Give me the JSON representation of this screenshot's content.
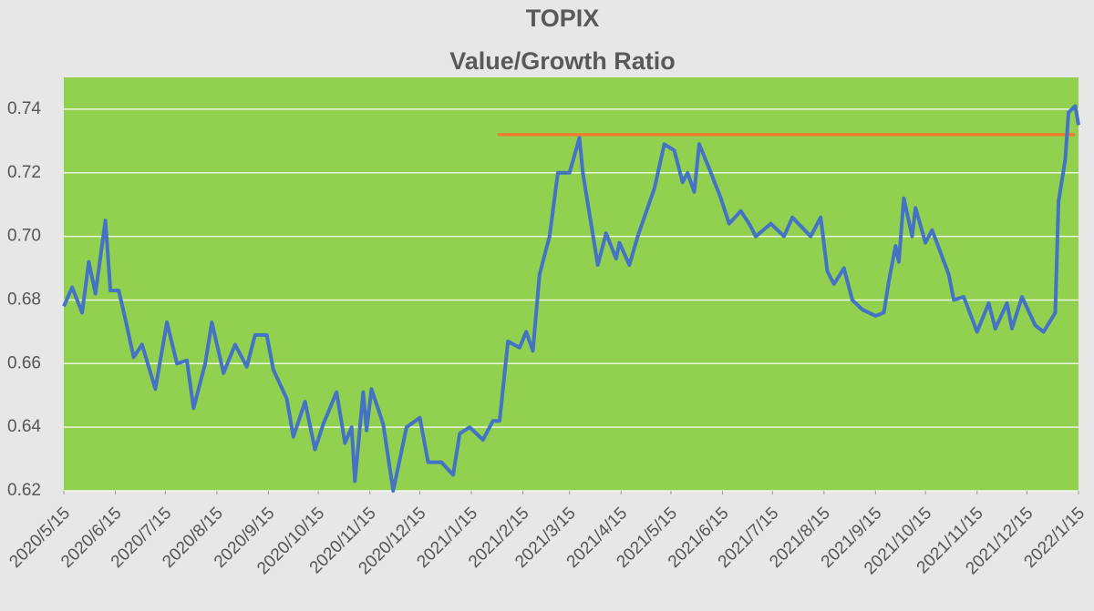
{
  "chart_data": {
    "type": "line",
    "title": "TOPIX",
    "subtitle": "Value/Growth Ratio",
    "color": "#4472c4",
    "background": "#92d050",
    "grid": true,
    "ylim": [
      0.62,
      0.75
    ],
    "yticks": [
      0.62,
      0.64,
      0.66,
      0.68,
      {
        "value": 0.7,
        "label": "0.70"
      },
      0.72,
      0.74
    ],
    "xlim": [
      "2020/5/15",
      "2022/1/15"
    ],
    "xticks": [
      "2020/5/15",
      "2020/6/15",
      "2020/7/15",
      "2020/8/15",
      "2020/9/15",
      "2020/10/15",
      "2020/11/15",
      "2020/12/15",
      "2021/1/15",
      "2021/2/15",
      "2021/3/15",
      "2021/4/15",
      "2021/5/15",
      "2021/6/15",
      "2021/7/15",
      "2021/8/15",
      "2021/9/15",
      "2021/10/15",
      "2021/11/15",
      "2021/12/15",
      "2022/1/15"
    ],
    "x": [
      "2020/5/15",
      "2020/5/20",
      "2020/5/26",
      "2020/5/30",
      "2020/6/3",
      "2020/6/9",
      "2020/6/12",
      "2020/6/17",
      "2020/6/21",
      "2020/6/26",
      "2020/7/1",
      "2020/7/9",
      "2020/7/16",
      "2020/7/22",
      "2020/7/28",
      "2020/8/1",
      "2020/8/8",
      "2020/8/12",
      "2020/8/19",
      "2020/8/26",
      "2020/9/2",
      "2020/9/7",
      "2020/9/14",
      "2020/9/18",
      "2020/9/26",
      "2020/9/30",
      "2020/10/7",
      "2020/10/13",
      "2020/10/18",
      "2020/10/26",
      "2020/10/31",
      "2020/11/4",
      "2020/11/6",
      "2020/11/11",
      "2020/11/13",
      "2020/11/16",
      "2020/11/23",
      "2020/11/29",
      "2020/12/7",
      "2020/12/15",
      "2020/12/20",
      "2020/12/28",
      "2021/1/4",
      "2021/1/8",
      "2021/1/14",
      "2021/1/22",
      "2021/1/28",
      "2021/2/1",
      "2021/2/6",
      "2021/2/13",
      "2021/2/17",
      "2021/2/21",
      "2021/2/25",
      "2021/3/3",
      "2021/3/8",
      "2021/3/15",
      "2021/3/21",
      "2021/3/23",
      "2021/4/1",
      "2021/4/6",
      "2021/4/12",
      "2021/4/14",
      "2021/4/20",
      "2021/4/25",
      "2021/5/5",
      "2021/5/11",
      "2021/5/17",
      "2021/5/22",
      "2021/5/25",
      "2021/5/29",
      "2021/6/1",
      "2021/6/8",
      "2021/6/14",
      "2021/6/19",
      "2021/6/26",
      "2021/7/1",
      "2021/7/5",
      "2021/7/14",
      "2021/7/22",
      "2021/7/27",
      "2021/8/7",
      "2021/8/13",
      "2021/8/17",
      "2021/8/21",
      "2021/8/27",
      "2021/9/1",
      "2021/9/7",
      "2021/9/15",
      "2021/9/20",
      "2021/9/23",
      "2021/9/27",
      "2021/9/29",
      "2021/10/2",
      "2021/10/7",
      "2021/10/9",
      "2021/10/15",
      "2021/10/19",
      "2021/10/24",
      "2021/10/29",
      "2021/11/1",
      "2021/11/7",
      "2021/11/15",
      "2021/11/22",
      "2021/11/26",
      "2021/12/3",
      "2021/12/6",
      "2021/12/12",
      "2021/12/20",
      "2021/12/25",
      "2022/1/1",
      "2022/1/3",
      "2022/1/7",
      "2022/1/9",
      "2022/1/13",
      "2022/1/15"
    ],
    "values": [
      0.678,
      0.684,
      0.676,
      0.692,
      0.682,
      0.705,
      0.683,
      0.683,
      0.674,
      0.662,
      0.666,
      0.652,
      0.673,
      0.66,
      0.661,
      0.646,
      0.66,
      0.673,
      0.657,
      0.666,
      0.659,
      0.669,
      0.669,
      0.658,
      0.649,
      0.637,
      0.648,
      0.633,
      0.641,
      0.651,
      0.635,
      0.64,
      0.623,
      0.651,
      0.639,
      0.652,
      0.641,
      0.62,
      0.64,
      0.643,
      0.629,
      0.629,
      0.625,
      0.638,
      0.64,
      0.636,
      0.642,
      0.642,
      0.667,
      0.665,
      0.67,
      0.664,
      0.688,
      0.7,
      0.72,
      0.72,
      0.731,
      0.72,
      0.691,
      0.701,
      0.693,
      0.698,
      0.691,
      0.7,
      0.715,
      0.729,
      0.727,
      0.717,
      0.72,
      0.714,
      0.729,
      0.72,
      0.712,
      0.704,
      0.708,
      0.704,
      0.7,
      0.704,
      0.7,
      0.706,
      0.7,
      0.706,
      0.689,
      0.685,
      0.69,
      0.68,
      0.677,
      0.675,
      0.676,
      0.686,
      0.697,
      0.692,
      0.712,
      0.7,
      0.709,
      0.698,
      0.702,
      0.695,
      0.688,
      0.68,
      0.681,
      0.67,
      0.679,
      0.671,
      0.679,
      0.671,
      0.681,
      0.672,
      0.67,
      0.676,
      0.711,
      0.724,
      0.739,
      0.741,
      0.735
    ],
    "reference_line": {
      "value": 0.732,
      "x": [
        "2021/1/31",
        "2022/1/13"
      ],
      "color": "#ed7d31"
    }
  }
}
